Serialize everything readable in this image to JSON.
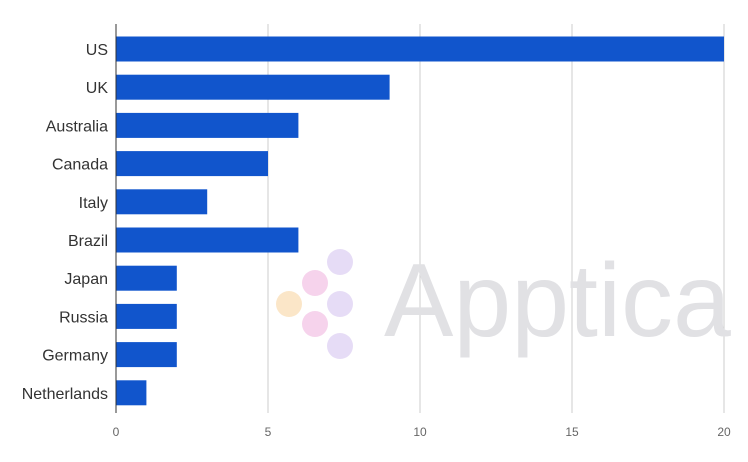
{
  "chart_data": {
    "type": "bar",
    "orientation": "horizontal",
    "categories": [
      "US",
      "UK",
      "Australia",
      "Canada",
      "Italy",
      "Brazil",
      "Japan",
      "Russia",
      "Germany",
      "Netherlands"
    ],
    "values": [
      20,
      9,
      6,
      5,
      3,
      6,
      2,
      2,
      2,
      1
    ],
    "xlim": [
      0,
      20
    ],
    "xticks": [
      0,
      5,
      10,
      15,
      20
    ],
    "grid": true,
    "bar_color": "#1155cc",
    "title": "",
    "xlabel": "",
    "ylabel": ""
  },
  "watermark": {
    "text": "Apptica",
    "dot_colors": [
      "#fbe6c8",
      "#f6d3ec",
      "#e6dcf6"
    ]
  }
}
